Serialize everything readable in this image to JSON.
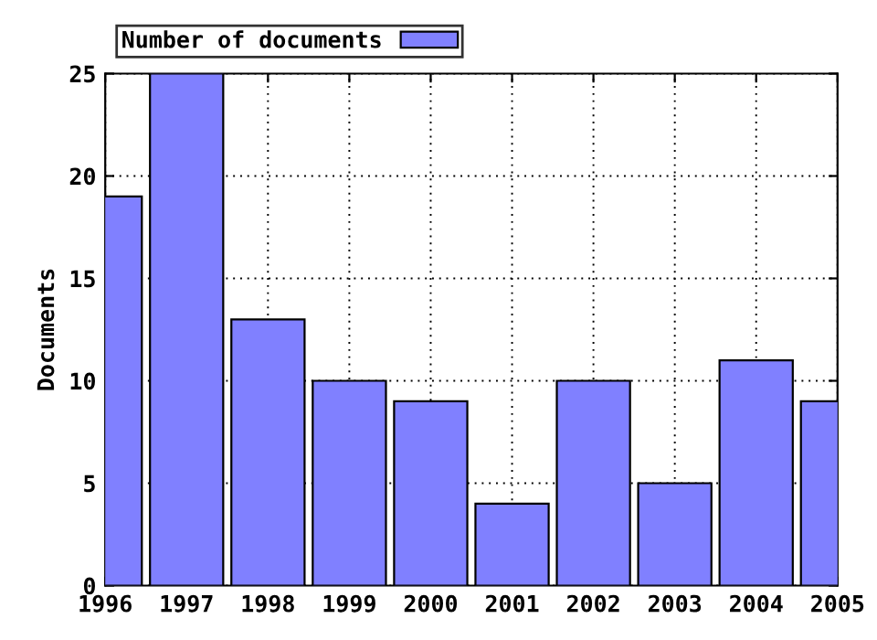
{
  "chart_data": {
    "type": "bar",
    "ylabel": "Documents",
    "x": [
      1996,
      1997,
      1998,
      1999,
      2000,
      2001,
      2002,
      2003,
      2004,
      2005
    ],
    "series": [
      {
        "name": "Number of documents",
        "color": "#8080ff",
        "values": [
          19,
          25,
          13,
          10,
          9,
          4,
          10,
          5,
          11,
          9
        ]
      }
    ],
    "xlim": [
      1996,
      2005
    ],
    "xticks": [
      1996,
      1997,
      1998,
      1999,
      2000,
      2001,
      2002,
      2003,
      2004,
      2005
    ],
    "ylim": [
      0,
      25
    ],
    "yticks": [
      0,
      5,
      10,
      15,
      20,
      25
    ],
    "grid": true,
    "legend": "top left"
  }
}
